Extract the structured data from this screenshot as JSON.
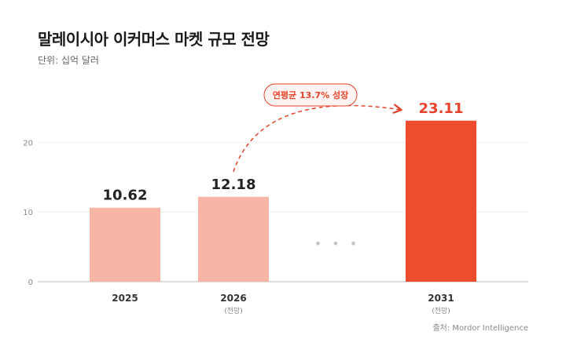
{
  "title": "말레이시아 이커머스 마켓 규모 전망",
  "subtitle": "단위: 십억 달러",
  "source": "출처: Mordor Intelligence",
  "annotation": "연평균 13.7% 성장",
  "colors": {
    "historic": "#f6b5a5",
    "forecast": "#ee4d2d",
    "label": "#222222",
    "forecastLabel": "#e8432a"
  },
  "chart_data": {
    "type": "bar",
    "categories": [
      "2025",
      "2026",
      "2031"
    ],
    "category_notes": [
      "",
      "(전망)",
      "(전망)"
    ],
    "values": [
      10.62,
      12.18,
      23.11
    ],
    "value_labels": [
      "10.62",
      "12.18",
      "23.11"
    ],
    "highlight": [
      false,
      false,
      true
    ],
    "y_ticks": [
      "0",
      "10",
      "20"
    ],
    "ylim": [
      0,
      20
    ],
    "grid": true,
    "gap_marker": "• • •"
  }
}
